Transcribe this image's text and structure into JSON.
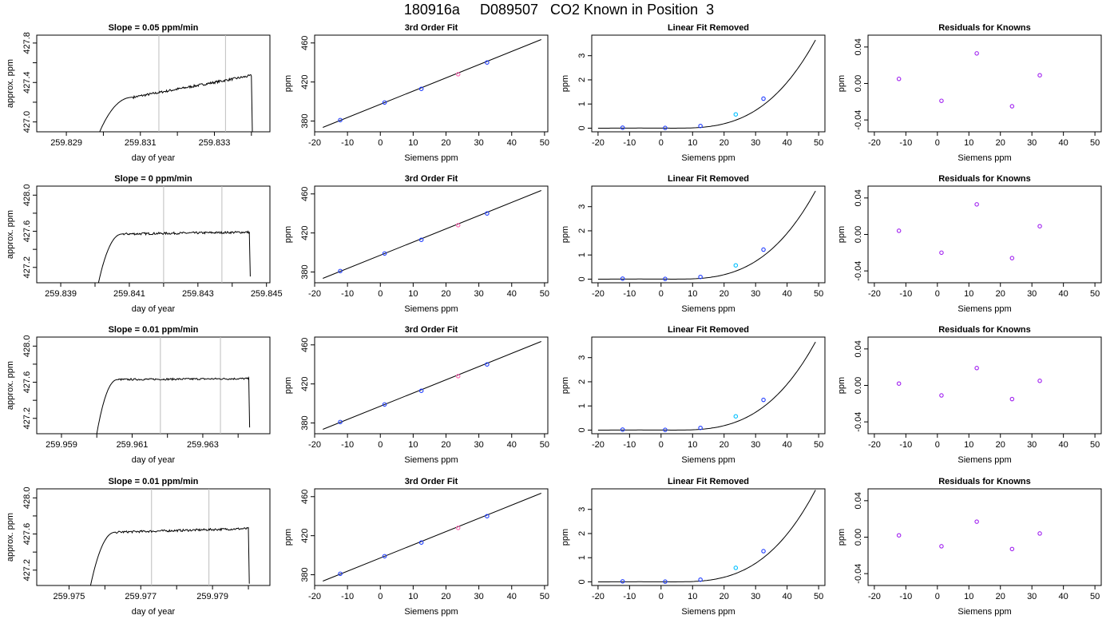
{
  "figure": {
    "title": "180916a     D089507   CO2 Known in Position  3"
  },
  "colors": {
    "axis": "#000000",
    "line": "#000000",
    "vline": "#bebebe",
    "point_blue": "#1f3cff",
    "point_purple": "#a020f0",
    "point_pink": "#ff69b4",
    "point_cyan": "#00bfff"
  },
  "chart_data": [
    {
      "type": "line",
      "row": 0,
      "col": 0,
      "title": "Slope =  0.05  ppm/min",
      "xlabel": "day of year",
      "ylabel": "approx. ppm",
      "xlim": [
        259.8282,
        259.8345
      ],
      "ylim": [
        426.9,
        427.88
      ],
      "xticks": [
        259.829,
        259.83,
        259.831,
        259.832,
        259.833,
        259.834
      ],
      "xtick_labels": [
        "259.829",
        "",
        "259.831",
        "",
        "259.833",
        ""
      ],
      "yticks": [
        427.0,
        427.2,
        427.4,
        427.6,
        427.8
      ],
      "ytick_labels": [
        "427.0",
        "",
        "427.4",
        "",
        "427.8"
      ],
      "vlines": [
        259.8315,
        259.8333
      ],
      "trace": {
        "x_start": 259.8299,
        "x_end": 259.834,
        "rise_end": 259.8308,
        "base": 426.9,
        "start": 427.25,
        "end": 427.47,
        "wiggle": 0.012,
        "drop_to": 426.9
      }
    },
    {
      "type": "scatter",
      "row": 0,
      "col": 1,
      "title": "3rd Order Fit",
      "xlabel": "Siemens ppm",
      "ylabel": "ppm",
      "xlim": [
        -20,
        51
      ],
      "ylim": [
        369,
        468
      ],
      "xticks": [
        -20,
        -10,
        0,
        10,
        20,
        30,
        40,
        50
      ],
      "xtick_labels": [
        "-20",
        "-10",
        "0",
        "10",
        "20",
        "30",
        "40",
        "50"
      ],
      "yticks": [
        380,
        420,
        460
      ],
      "ytick_labels": [
        "380",
        "420",
        "460"
      ],
      "fit_line": {
        "x": [
          -17.5,
          49
        ],
        "y": [
          373.5,
          463.5
        ]
      },
      "points": [
        {
          "x": -12.2,
          "y": 381,
          "color": "point_blue"
        },
        {
          "x": 1.3,
          "y": 399,
          "color": "point_blue"
        },
        {
          "x": 12.5,
          "y": 413,
          "color": "point_blue"
        },
        {
          "x": 23.7,
          "y": 428,
          "color": "point_pink"
        },
        {
          "x": 32.5,
          "y": 440,
          "color": "point_blue"
        }
      ]
    },
    {
      "type": "scatter",
      "row": 0,
      "col": 2,
      "title": "Linear Fit Removed",
      "xlabel": "Siemens ppm",
      "ylabel": "ppm",
      "xlim": [
        -22,
        52
      ],
      "ylim": [
        -0.15,
        3.85
      ],
      "xticks": [
        -20,
        -10,
        0,
        10,
        20,
        30,
        40,
        50
      ],
      "xtick_labels": [
        "-20",
        "-10",
        "0",
        "10",
        "20",
        "30",
        "40",
        "50"
      ],
      "yticks": [
        0,
        1,
        2,
        3
      ],
      "ytick_labels": [
        "0",
        "1",
        "2",
        "3"
      ],
      "curve": {
        "x_range": [
          -20,
          49
        ],
        "y_at_end": 3.65
      },
      "points": [
        {
          "x": -12.2,
          "y": 0.02,
          "color": "point_blue"
        },
        {
          "x": 1.3,
          "y": 0.01,
          "color": "point_blue"
        },
        {
          "x": 12.5,
          "y": 0.09,
          "color": "point_blue"
        },
        {
          "x": 23.7,
          "y": 0.57,
          "color": "point_cyan"
        },
        {
          "x": 32.5,
          "y": 1.22,
          "color": "point_blue"
        }
      ]
    },
    {
      "type": "scatter",
      "row": 0,
      "col": 3,
      "title": "Residuals for Knowns",
      "xlabel": "Siemens ppm",
      "ylabel": "ppm",
      "xlim": [
        -22,
        52
      ],
      "ylim": [
        -0.053,
        0.053
      ],
      "xticks": [
        -20,
        -10,
        0,
        10,
        20,
        30,
        40,
        50
      ],
      "xtick_labels": [
        "-20",
        "-10",
        "0",
        "10",
        "20",
        "30",
        "40",
        "50"
      ],
      "yticks": [
        -0.04,
        0.0,
        0.04
      ],
      "ytick_labels": [
        "-0.04",
        "0.00",
        "0.04"
      ],
      "points": [
        {
          "x": -12.2,
          "y": 0.005,
          "color": "point_purple"
        },
        {
          "x": 1.3,
          "y": -0.019,
          "color": "point_purple"
        },
        {
          "x": 12.5,
          "y": 0.033,
          "color": "point_purple"
        },
        {
          "x": 23.7,
          "y": -0.025,
          "color": "point_purple"
        },
        {
          "x": 32.5,
          "y": 0.009,
          "color": "point_purple"
        }
      ]
    },
    {
      "type": "line",
      "row": 1,
      "col": 0,
      "title": "Slope =  0  ppm/min",
      "xlabel": "day of year",
      "ylabel": "approx. ppm",
      "xlim": [
        259.8383,
        259.8451
      ],
      "ylim": [
        427.03,
        428.1
      ],
      "xticks": [
        259.839,
        259.84,
        259.841,
        259.842,
        259.843,
        259.844,
        259.845
      ],
      "xtick_labels": [
        "259.839",
        "",
        "259.841",
        "",
        "259.843",
        "",
        "259.845"
      ],
      "yticks": [
        427.2,
        427.4,
        427.6,
        427.8,
        428.0
      ],
      "ytick_labels": [
        "427.2",
        "",
        "427.6",
        "",
        "428.0"
      ],
      "vlines": [
        259.842,
        259.8437
      ],
      "trace": {
        "x_start": 259.8401,
        "x_end": 259.8445,
        "rise_end": 259.8408,
        "base": 427.03,
        "start": 427.57,
        "end": 427.59,
        "wiggle": 0.012,
        "drop_to": 427.1
      }
    },
    {
      "type": "scatter",
      "row": 1,
      "col": 1,
      "title": "3rd Order Fit",
      "xlabel": "Siemens ppm",
      "ylabel": "ppm",
      "xlim": [
        -20,
        51
      ],
      "ylim": [
        369,
        468
      ],
      "xticks": [
        -20,
        -10,
        0,
        10,
        20,
        30,
        40,
        50
      ],
      "xtick_labels": [
        "-20",
        "-10",
        "0",
        "10",
        "20",
        "30",
        "40",
        "50"
      ],
      "yticks": [
        380,
        420,
        460
      ],
      "ytick_labels": [
        "380",
        "420",
        "460"
      ],
      "fit_line": {
        "x": [
          -17.5,
          49
        ],
        "y": [
          373.5,
          463.5
        ]
      },
      "points": [
        {
          "x": -12.2,
          "y": 381,
          "color": "point_blue"
        },
        {
          "x": 1.3,
          "y": 399,
          "color": "point_blue"
        },
        {
          "x": 12.5,
          "y": 413,
          "color": "point_blue"
        },
        {
          "x": 23.7,
          "y": 428,
          "color": "point_pink"
        },
        {
          "x": 32.5,
          "y": 440,
          "color": "point_blue"
        }
      ]
    },
    {
      "type": "scatter",
      "row": 1,
      "col": 2,
      "title": "Linear Fit Removed",
      "xlabel": "Siemens ppm",
      "ylabel": "ppm",
      "xlim": [
        -22,
        52
      ],
      "ylim": [
        -0.15,
        3.85
      ],
      "xticks": [
        -20,
        -10,
        0,
        10,
        20,
        30,
        40,
        50
      ],
      "xtick_labels": [
        "-20",
        "-10",
        "0",
        "10",
        "20",
        "30",
        "40",
        "50"
      ],
      "yticks": [
        0,
        1,
        2,
        3
      ],
      "ytick_labels": [
        "0",
        "1",
        "2",
        "3"
      ],
      "curve": {
        "x_range": [
          -20,
          49
        ],
        "y_at_end": 3.65
      },
      "points": [
        {
          "x": -12.2,
          "y": 0.02,
          "color": "point_blue"
        },
        {
          "x": 1.3,
          "y": 0.01,
          "color": "point_blue"
        },
        {
          "x": 12.5,
          "y": 0.09,
          "color": "point_blue"
        },
        {
          "x": 23.7,
          "y": 0.57,
          "color": "point_cyan"
        },
        {
          "x": 32.5,
          "y": 1.22,
          "color": "point_blue"
        }
      ]
    },
    {
      "type": "scatter",
      "row": 1,
      "col": 3,
      "title": "Residuals for Knowns",
      "xlabel": "Siemens ppm",
      "ylabel": "ppm",
      "xlim": [
        -22,
        52
      ],
      "ylim": [
        -0.053,
        0.053
      ],
      "xticks": [
        -20,
        -10,
        0,
        10,
        20,
        30,
        40,
        50
      ],
      "xtick_labels": [
        "-20",
        "-10",
        "0",
        "10",
        "20",
        "30",
        "40",
        "50"
      ],
      "yticks": [
        -0.04,
        0.0,
        0.04
      ],
      "ytick_labels": [
        "-0.04",
        "0.00",
        "0.04"
      ],
      "points": [
        {
          "x": -12.2,
          "y": 0.004,
          "color": "point_purple"
        },
        {
          "x": 1.3,
          "y": -0.02,
          "color": "point_purple"
        },
        {
          "x": 12.5,
          "y": 0.033,
          "color": "point_purple"
        },
        {
          "x": 23.7,
          "y": -0.026,
          "color": "point_purple"
        },
        {
          "x": 32.5,
          "y": 0.009,
          "color": "point_purple"
        }
      ]
    },
    {
      "type": "line",
      "row": 2,
      "col": 0,
      "title": "Slope =  0.01  ppm/min",
      "xlabel": "day of year",
      "ylabel": "approx. ppm",
      "xlim": [
        259.9583,
        259.9649
      ],
      "ylim": [
        427.03,
        428.1
      ],
      "xticks": [
        259.959,
        259.96,
        259.961,
        259.962,
        259.963,
        259.964
      ],
      "xtick_labels": [
        "259.959",
        "",
        "259.961",
        "",
        "259.963",
        ""
      ],
      "yticks": [
        427.2,
        427.4,
        427.6,
        427.8,
        428.0
      ],
      "ytick_labels": [
        "427.2",
        "",
        "427.6",
        "",
        "428.0"
      ],
      "vlines": [
        259.9618,
        259.9635
      ],
      "trace": {
        "x_start": 259.96,
        "x_end": 259.9643,
        "rise_end": 259.9606,
        "base": 427.03,
        "start": 427.63,
        "end": 427.64,
        "wiggle": 0.01,
        "drop_to": 427.1
      }
    },
    {
      "type": "scatter",
      "row": 2,
      "col": 1,
      "title": "3rd Order Fit",
      "xlabel": "Siemens ppm",
      "ylabel": "ppm",
      "xlim": [
        -20,
        51
      ],
      "ylim": [
        369,
        468
      ],
      "xticks": [
        -20,
        -10,
        0,
        10,
        20,
        30,
        40,
        50
      ],
      "xtick_labels": [
        "-20",
        "-10",
        "0",
        "10",
        "20",
        "30",
        "40",
        "50"
      ],
      "yticks": [
        380,
        420,
        460
      ],
      "ytick_labels": [
        "380",
        "420",
        "460"
      ],
      "fit_line": {
        "x": [
          -17.5,
          49
        ],
        "y": [
          373.5,
          463.5
        ]
      },
      "points": [
        {
          "x": -12.2,
          "y": 381,
          "color": "point_blue"
        },
        {
          "x": 1.3,
          "y": 399,
          "color": "point_blue"
        },
        {
          "x": 12.5,
          "y": 413,
          "color": "point_blue"
        },
        {
          "x": 23.7,
          "y": 428,
          "color": "point_pink"
        },
        {
          "x": 32.5,
          "y": 440,
          "color": "point_blue"
        }
      ]
    },
    {
      "type": "scatter",
      "row": 2,
      "col": 2,
      "title": "Linear Fit Removed",
      "xlabel": "Siemens ppm",
      "ylabel": "ppm",
      "xlim": [
        -22,
        52
      ],
      "ylim": [
        -0.15,
        3.85
      ],
      "xticks": [
        -20,
        -10,
        0,
        10,
        20,
        30,
        40,
        50
      ],
      "xtick_labels": [
        "-20",
        "-10",
        "0",
        "10",
        "20",
        "30",
        "40",
        "50"
      ],
      "yticks": [
        0,
        1,
        2,
        3
      ],
      "ytick_labels": [
        "0",
        "1",
        "2",
        "3"
      ],
      "curve": {
        "x_range": [
          -20,
          49
        ],
        "y_at_end": 3.65
      },
      "points": [
        {
          "x": -12.2,
          "y": 0.02,
          "color": "point_blue"
        },
        {
          "x": 1.3,
          "y": 0.01,
          "color": "point_blue"
        },
        {
          "x": 12.5,
          "y": 0.09,
          "color": "point_blue"
        },
        {
          "x": 23.7,
          "y": 0.57,
          "color": "point_cyan"
        },
        {
          "x": 32.5,
          "y": 1.25,
          "color": "point_blue"
        }
      ]
    },
    {
      "type": "scatter",
      "row": 2,
      "col": 3,
      "title": "Residuals for Knowns",
      "xlabel": "Siemens ppm",
      "ylabel": "ppm",
      "xlim": [
        -22,
        52
      ],
      "ylim": [
        -0.053,
        0.053
      ],
      "xticks": [
        -20,
        -10,
        0,
        10,
        20,
        30,
        40,
        50
      ],
      "xtick_labels": [
        "-20",
        "-10",
        "0",
        "10",
        "20",
        "30",
        "40",
        "50"
      ],
      "yticks": [
        -0.04,
        0.0,
        0.04
      ],
      "ytick_labels": [
        "-0.04",
        "0.00",
        "0.04"
      ],
      "points": [
        {
          "x": -12.2,
          "y": 0.002,
          "color": "point_purple"
        },
        {
          "x": 1.3,
          "y": -0.011,
          "color": "point_purple"
        },
        {
          "x": 12.5,
          "y": 0.019,
          "color": "point_purple"
        },
        {
          "x": 23.7,
          "y": -0.015,
          "color": "point_purple"
        },
        {
          "x": 32.5,
          "y": 0.005,
          "color": "point_purple"
        }
      ]
    },
    {
      "type": "line",
      "row": 3,
      "col": 0,
      "title": "Slope =  0.01  ppm/min",
      "xlabel": "day of year",
      "ylabel": "approx. ppm",
      "xlim": [
        259.9741,
        259.9806
      ],
      "ylim": [
        427.03,
        428.1
      ],
      "xticks": [
        259.975,
        259.976,
        259.977,
        259.978,
        259.979,
        259.98
      ],
      "xtick_labels": [
        "259.975",
        "",
        "259.977",
        "",
        "259.979",
        ""
      ],
      "yticks": [
        427.2,
        427.4,
        427.6,
        427.8,
        428.0
      ],
      "ytick_labels": [
        "427.2",
        "",
        "427.6",
        "",
        "428.0"
      ],
      "vlines": [
        259.9773,
        259.9789
      ],
      "trace": {
        "x_start": 259.9756,
        "x_end": 259.98,
        "rise_end": 259.9763,
        "base": 427.03,
        "start": 427.62,
        "end": 427.66,
        "wiggle": 0.012,
        "drop_to": 427.05
      }
    },
    {
      "type": "scatter",
      "row": 3,
      "col": 1,
      "title": "3rd Order Fit",
      "xlabel": "Siemens ppm",
      "ylabel": "ppm",
      "xlim": [
        -20,
        51
      ],
      "ylim": [
        369,
        468
      ],
      "xticks": [
        -20,
        -10,
        0,
        10,
        20,
        30,
        40,
        50
      ],
      "xtick_labels": [
        "-20",
        "-10",
        "0",
        "10",
        "20",
        "30",
        "40",
        "50"
      ],
      "yticks": [
        380,
        420,
        460
      ],
      "ytick_labels": [
        "380",
        "420",
        "460"
      ],
      "fit_line": {
        "x": [
          -17.5,
          49
        ],
        "y": [
          373.5,
          463.5
        ]
      },
      "points": [
        {
          "x": -12.2,
          "y": 381,
          "color": "point_blue"
        },
        {
          "x": 1.3,
          "y": 399,
          "color": "point_blue"
        },
        {
          "x": 12.5,
          "y": 413,
          "color": "point_blue"
        },
        {
          "x": 23.7,
          "y": 428,
          "color": "point_pink"
        },
        {
          "x": 32.5,
          "y": 440,
          "color": "point_blue"
        }
      ]
    },
    {
      "type": "scatter",
      "row": 3,
      "col": 2,
      "title": "Linear Fit Removed",
      "xlabel": "Siemens ppm",
      "ylabel": "ppm",
      "xlim": [
        -22,
        52
      ],
      "ylim": [
        -0.15,
        3.85
      ],
      "xticks": [
        -20,
        -10,
        0,
        10,
        20,
        30,
        40,
        50
      ],
      "xtick_labels": [
        "-20",
        "-10",
        "0",
        "10",
        "20",
        "30",
        "40",
        "50"
      ],
      "yticks": [
        0,
        1,
        2,
        3
      ],
      "ytick_labels": [
        "0",
        "1",
        "2",
        "3"
      ],
      "curve": {
        "x_range": [
          -20,
          49
        ],
        "y_at_end": 3.8
      },
      "points": [
        {
          "x": -12.2,
          "y": 0.02,
          "color": "point_blue"
        },
        {
          "x": 1.3,
          "y": 0.01,
          "color": "point_blue"
        },
        {
          "x": 12.5,
          "y": 0.09,
          "color": "point_blue"
        },
        {
          "x": 23.7,
          "y": 0.58,
          "color": "point_cyan"
        },
        {
          "x": 32.5,
          "y": 1.27,
          "color": "point_blue"
        }
      ]
    },
    {
      "type": "scatter",
      "row": 3,
      "col": 3,
      "title": "Residuals for Knowns",
      "xlabel": "Siemens ppm",
      "ylabel": "ppm",
      "xlim": [
        -22,
        52
      ],
      "ylim": [
        -0.053,
        0.053
      ],
      "xticks": [
        -20,
        -10,
        0,
        10,
        20,
        30,
        40,
        50
      ],
      "xtick_labels": [
        "-20",
        "-10",
        "0",
        "10",
        "20",
        "30",
        "40",
        "50"
      ],
      "yticks": [
        -0.04,
        0.0,
        0.04
      ],
      "ytick_labels": [
        "-0.04",
        "0.00",
        "0.04"
      ],
      "points": [
        {
          "x": -12.2,
          "y": 0.002,
          "color": "point_purple"
        },
        {
          "x": 1.3,
          "y": -0.01,
          "color": "point_purple"
        },
        {
          "x": 12.5,
          "y": 0.017,
          "color": "point_purple"
        },
        {
          "x": 23.7,
          "y": -0.013,
          "color": "point_purple"
        },
        {
          "x": 32.5,
          "y": 0.004,
          "color": "point_purple"
        }
      ]
    }
  ]
}
